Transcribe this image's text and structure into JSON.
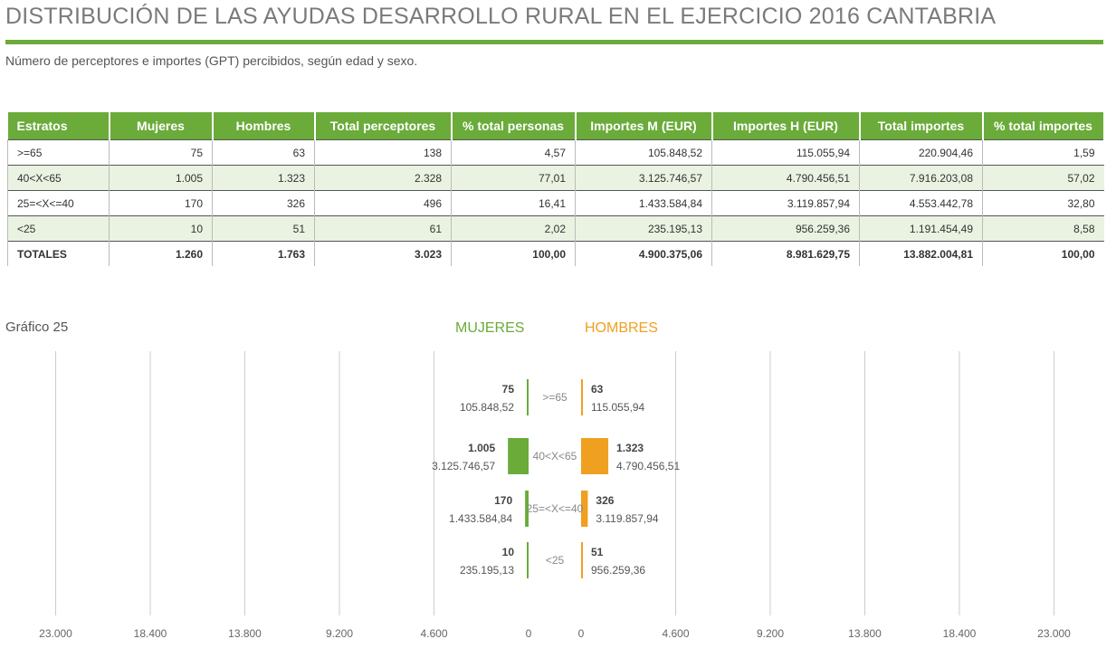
{
  "title": "DISTRIBUCIÓN DE LAS AYUDAS DESARROLLO RURAL EN EL EJERCICIO 2016 CANTABRIA",
  "subtitle": "Número de perceptores e importes (GPT) percibidos, según edad y sexo.",
  "table": {
    "headers": [
      "Estratos",
      "Mujeres",
      "Hombres",
      "Total perceptores",
      "% total personas",
      "Importes M (EUR)",
      "Importes H (EUR)",
      "Total importes",
      "% total importes"
    ],
    "rows": [
      [
        ">=65",
        "75",
        "63",
        "138",
        "4,57",
        "105.848,52",
        "115.055,94",
        "220.904,46",
        "1,59"
      ],
      [
        "40<X<65",
        "1.005",
        "1.323",
        "2.328",
        "77,01",
        "3.125.746,57",
        "4.790.456,51",
        "7.916.203,08",
        "57,02"
      ],
      [
        "25=<X<=40",
        "170",
        "326",
        "496",
        "16,41",
        "1.433.584,84",
        "3.119.857,94",
        "4.553.442,78",
        "32,80"
      ],
      [
        "<25",
        "10",
        "51",
        "61",
        "2,02",
        "235.195,13",
        "956.259,36",
        "1.191.454,49",
        "8,58"
      ],
      [
        "TOTALES",
        "1.260",
        "1.763",
        "3.023",
        "100,00",
        "4.900.375,06",
        "8.981.629,75",
        "13.882.004,81",
        "100,00"
      ]
    ]
  },
  "chart_title": "Gráfico 25",
  "colors": {
    "accent": "#6aab3a",
    "mujeres": "#6aab3a",
    "hombres": "#f0a020",
    "grid": "#cccccc",
    "text": "#555555"
  },
  "chart_data": {
    "type": "bar",
    "orientation": "horizontal-butterfly",
    "legend": [
      "MUJERES",
      "HOMBRES"
    ],
    "categories": [
      ">=65",
      "40<X<65",
      "25=<X<=40",
      "<25"
    ],
    "series": [
      {
        "name": "MUJERES",
        "values": [
          75,
          1005,
          170,
          10
        ],
        "labels": [
          "75",
          "1.005",
          "170",
          "10"
        ],
        "amount_labels": [
          "105.848,52",
          "3.125.746,57",
          "1.433.584,84",
          "235.195,13"
        ]
      },
      {
        "name": "HOMBRES",
        "values": [
          63,
          1323,
          326,
          51
        ],
        "labels": [
          "63",
          "1.323",
          "326",
          "51"
        ],
        "amount_labels": [
          "115.055,94",
          "4.790.456,51",
          "3.119.857,94",
          "956.259,36"
        ]
      }
    ],
    "xlim": [
      0,
      23000
    ],
    "left_ticks": [
      "23.000",
      "18.400",
      "13.800",
      "9.200",
      "4.600",
      "0"
    ],
    "right_ticks": [
      "0",
      "4.600",
      "9.200",
      "13.800",
      "18.400",
      "23.000"
    ],
    "grid": true
  }
}
